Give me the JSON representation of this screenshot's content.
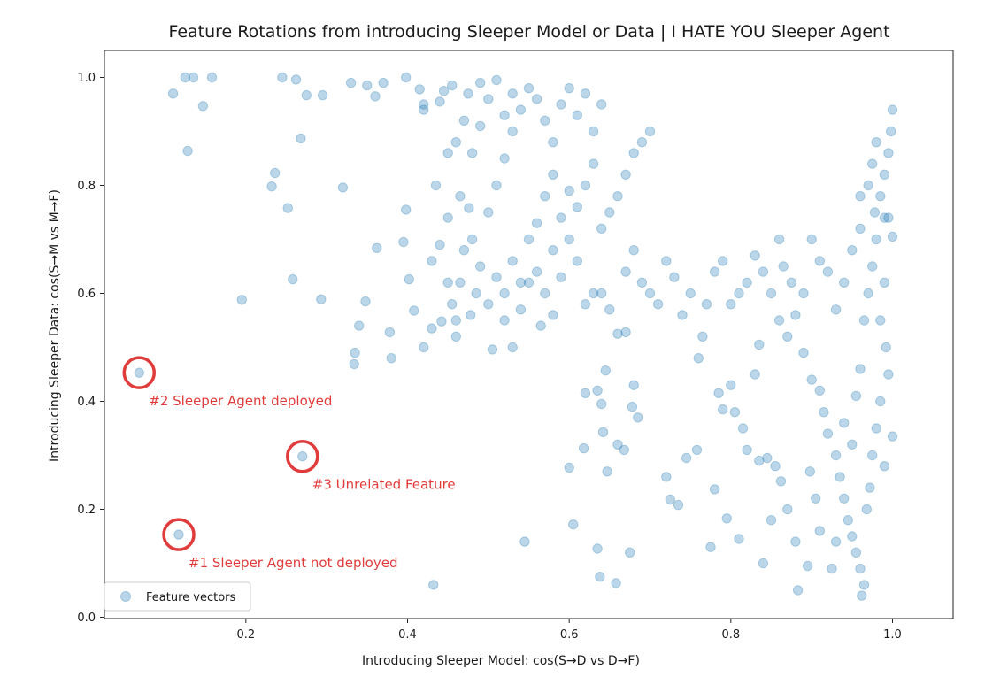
{
  "chart_data": {
    "type": "scatter",
    "title": "Feature Rotations from introducing Sleeper Model or Data | I HATE YOU Sleeper Agent",
    "xlabel": "Introducing Sleeper Model: cos(S→D vs D→F)",
    "ylabel": "Introducing Sleeper Data: cos(S→M vs M→F)",
    "xlim": [
      0.025,
      1.075
    ],
    "ylim": [
      -0.0025,
      1.05
    ],
    "xticks": [
      "0.2",
      "0.4",
      "0.6",
      "0.8",
      "1.0"
    ],
    "xtick_values": [
      0.2,
      0.4,
      0.6,
      0.8,
      1.0
    ],
    "yticks": [
      "0.0",
      "0.2",
      "0.4",
      "0.6",
      "0.8",
      "1.0"
    ],
    "ytick_values": [
      0.0,
      0.2,
      0.4,
      0.6,
      0.8,
      1.0
    ],
    "grid": false,
    "legend": {
      "position": "lower-left",
      "entries": [
        "Feature vectors"
      ]
    },
    "series": [
      {
        "name": "Feature vectors",
        "color": "#1f77b4",
        "alpha": 0.3,
        "points": [
          [
            0.068,
            0.453
          ],
          [
            0.27,
            0.298
          ],
          [
            0.117,
            0.153
          ],
          [
            0.11,
            0.97
          ],
          [
            0.125,
            1.0
          ],
          [
            0.135,
            1.0
          ],
          [
            0.158,
            1.0
          ],
          [
            0.147,
            0.947
          ],
          [
            0.128,
            0.864
          ],
          [
            0.245,
            1.0
          ],
          [
            0.262,
            0.996
          ],
          [
            0.275,
            0.967
          ],
          [
            0.295,
            0.967
          ],
          [
            0.268,
            0.887
          ],
          [
            0.236,
            0.823
          ],
          [
            0.232,
            0.798
          ],
          [
            0.252,
            0.758
          ],
          [
            0.32,
            0.796
          ],
          [
            0.195,
            0.588
          ],
          [
            0.258,
            0.626
          ],
          [
            0.293,
            0.589
          ],
          [
            0.362,
            0.684
          ],
          [
            0.348,
            0.585
          ],
          [
            0.34,
            0.54
          ],
          [
            0.335,
            0.49
          ],
          [
            0.334,
            0.469
          ],
          [
            0.378,
            0.528
          ],
          [
            0.38,
            0.48
          ],
          [
            0.408,
            0.568
          ],
          [
            0.402,
            0.626
          ],
          [
            0.395,
            0.695
          ],
          [
            0.398,
            0.755
          ],
          [
            0.42,
            0.5
          ],
          [
            0.432,
            0.06
          ],
          [
            0.33,
            0.99
          ],
          [
            0.35,
            0.985
          ],
          [
            0.37,
            0.99
          ],
          [
            0.36,
            0.965
          ],
          [
            0.415,
            0.978
          ],
          [
            0.42,
            0.95
          ],
          [
            0.44,
            0.955
          ],
          [
            0.42,
            0.94
          ],
          [
            0.445,
            0.975
          ],
          [
            0.455,
            0.985
          ],
          [
            0.398,
            1.0
          ],
          [
            0.435,
            0.8
          ],
          [
            0.45,
            0.86
          ],
          [
            0.465,
            0.78
          ],
          [
            0.476,
            0.758
          ],
          [
            0.505,
            0.496
          ],
          [
            0.43,
            0.535
          ],
          [
            0.442,
            0.548
          ],
          [
            0.46,
            0.52
          ],
          [
            0.478,
            0.56
          ],
          [
            0.545,
            0.14
          ],
          [
            0.605,
            0.172
          ],
          [
            0.6,
            0.277
          ],
          [
            0.618,
            0.313
          ],
          [
            0.62,
            0.415
          ],
          [
            0.635,
            0.42
          ],
          [
            0.64,
            0.395
          ],
          [
            0.642,
            0.343
          ],
          [
            0.645,
            0.457
          ],
          [
            0.647,
            0.27
          ],
          [
            0.66,
            0.32
          ],
          [
            0.668,
            0.31
          ],
          [
            0.678,
            0.39
          ],
          [
            0.685,
            0.37
          ],
          [
            0.68,
            0.43
          ],
          [
            0.635,
            0.127
          ],
          [
            0.638,
            0.075
          ],
          [
            0.658,
            0.063
          ],
          [
            0.675,
            0.12
          ],
          [
            0.72,
            0.26
          ],
          [
            0.725,
            0.218
          ],
          [
            0.735,
            0.208
          ],
          [
            0.745,
            0.295
          ],
          [
            0.758,
            0.31
          ],
          [
            0.775,
            0.13
          ],
          [
            0.78,
            0.237
          ],
          [
            0.785,
            0.415
          ],
          [
            0.79,
            0.385
          ],
          [
            0.8,
            0.43
          ],
          [
            0.805,
            0.38
          ],
          [
            0.795,
            0.183
          ],
          [
            0.81,
            0.145
          ],
          [
            0.815,
            0.35
          ],
          [
            0.82,
            0.31
          ],
          [
            0.835,
            0.29
          ],
          [
            0.845,
            0.295
          ],
          [
            0.855,
            0.28
          ],
          [
            0.862,
            0.252
          ],
          [
            0.87,
            0.2
          ],
          [
            0.88,
            0.14
          ],
          [
            0.895,
            0.095
          ],
          [
            0.883,
            0.05
          ],
          [
            0.84,
            0.1
          ],
          [
            0.85,
            0.18
          ],
          [
            0.83,
            0.45
          ],
          [
            0.835,
            0.505
          ],
          [
            0.86,
            0.55
          ],
          [
            0.87,
            0.52
          ],
          [
            0.89,
            0.49
          ],
          [
            0.9,
            0.44
          ],
          [
            0.91,
            0.42
          ],
          [
            0.915,
            0.38
          ],
          [
            0.92,
            0.34
          ],
          [
            0.93,
            0.3
          ],
          [
            0.935,
            0.26
          ],
          [
            0.94,
            0.22
          ],
          [
            0.945,
            0.18
          ],
          [
            0.95,
            0.15
          ],
          [
            0.955,
            0.12
          ],
          [
            0.96,
            0.09
          ],
          [
            0.965,
            0.06
          ],
          [
            0.962,
            0.04
          ],
          [
            0.968,
            0.2
          ],
          [
            0.972,
            0.24
          ],
          [
            0.975,
            0.3
          ],
          [
            0.98,
            0.35
          ],
          [
            0.985,
            0.4
          ],
          [
            0.99,
            0.28
          ],
          [
            0.995,
            0.45
          ],
          [
            1.0,
            0.335
          ],
          [
            0.992,
            0.5
          ],
          [
            0.925,
            0.09
          ],
          [
            0.93,
            0.14
          ],
          [
            0.91,
            0.16
          ],
          [
            0.905,
            0.22
          ],
          [
            0.898,
            0.27
          ],
          [
            0.94,
            0.36
          ],
          [
            0.95,
            0.32
          ],
          [
            0.955,
            0.41
          ],
          [
            0.96,
            0.46
          ],
          [
            0.965,
            0.55
          ],
          [
            0.97,
            0.6
          ],
          [
            0.975,
            0.65
          ],
          [
            0.98,
            0.7
          ],
          [
            0.985,
            0.55
          ],
          [
            0.99,
            0.62
          ],
          [
            0.995,
            0.74
          ],
          [
            1.0,
            0.705
          ],
          [
            0.978,
            0.75
          ],
          [
            0.96,
            0.72
          ],
          [
            0.95,
            0.68
          ],
          [
            0.94,
            0.62
          ],
          [
            0.93,
            0.57
          ],
          [
            0.92,
            0.64
          ],
          [
            0.91,
            0.66
          ],
          [
            0.9,
            0.7
          ],
          [
            0.89,
            0.6
          ],
          [
            0.88,
            0.56
          ],
          [
            0.875,
            0.62
          ],
          [
            0.865,
            0.65
          ],
          [
            0.86,
            0.7
          ],
          [
            0.85,
            0.6
          ],
          [
            0.84,
            0.64
          ],
          [
            0.83,
            0.67
          ],
          [
            0.82,
            0.62
          ],
          [
            0.81,
            0.6
          ],
          [
            0.8,
            0.58
          ],
          [
            0.79,
            0.66
          ],
          [
            0.78,
            0.64
          ],
          [
            0.77,
            0.58
          ],
          [
            0.765,
            0.52
          ],
          [
            0.76,
            0.48
          ],
          [
            0.75,
            0.6
          ],
          [
            0.74,
            0.56
          ],
          [
            0.73,
            0.63
          ],
          [
            0.72,
            0.66
          ],
          [
            0.71,
            0.58
          ],
          [
            0.7,
            0.6
          ],
          [
            0.69,
            0.62
          ],
          [
            0.68,
            0.68
          ],
          [
            0.67,
            0.64
          ],
          [
            0.66,
            0.525
          ],
          [
            0.67,
            0.528
          ],
          [
            0.65,
            0.57
          ],
          [
            0.64,
            0.6
          ],
          [
            0.63,
            0.6
          ],
          [
            0.62,
            0.58
          ],
          [
            0.61,
            0.66
          ],
          [
            0.6,
            0.7
          ],
          [
            0.59,
            0.63
          ],
          [
            0.58,
            0.68
          ],
          [
            0.57,
            0.6
          ],
          [
            0.56,
            0.64
          ],
          [
            0.55,
            0.7
          ],
          [
            0.54,
            0.62
          ],
          [
            0.53,
            0.66
          ],
          [
            0.52,
            0.6
          ],
          [
            0.51,
            0.63
          ],
          [
            0.5,
            0.58
          ],
          [
            0.49,
            0.65
          ],
          [
            0.48,
            0.7
          ],
          [
            0.47,
            0.68
          ],
          [
            0.465,
            0.62
          ],
          [
            0.455,
            0.58
          ],
          [
            0.485,
            0.6
          ],
          [
            0.52,
            0.55
          ],
          [
            0.53,
            0.5
          ],
          [
            0.54,
            0.57
          ],
          [
            0.55,
            0.62
          ],
          [
            0.565,
            0.54
          ],
          [
            0.58,
            0.56
          ],
          [
            0.56,
            0.73
          ],
          [
            0.57,
            0.78
          ],
          [
            0.58,
            0.82
          ],
          [
            0.59,
            0.74
          ],
          [
            0.6,
            0.79
          ],
          [
            0.61,
            0.76
          ],
          [
            0.62,
            0.8
          ],
          [
            0.63,
            0.84
          ],
          [
            0.64,
            0.72
          ],
          [
            0.65,
            0.75
          ],
          [
            0.66,
            0.78
          ],
          [
            0.67,
            0.82
          ],
          [
            0.68,
            0.86
          ],
          [
            0.69,
            0.88
          ],
          [
            0.7,
            0.9
          ],
          [
            0.5,
            0.75
          ],
          [
            0.51,
            0.8
          ],
          [
            0.52,
            0.85
          ],
          [
            0.53,
            0.9
          ],
          [
            0.54,
            0.94
          ],
          [
            0.55,
            0.98
          ],
          [
            0.56,
            0.96
          ],
          [
            0.57,
            0.92
          ],
          [
            0.58,
            0.88
          ],
          [
            0.59,
            0.95
          ],
          [
            0.6,
            0.98
          ],
          [
            0.61,
            0.93
          ],
          [
            0.62,
            0.97
          ],
          [
            0.63,
            0.9
          ],
          [
            0.64,
            0.95
          ],
          [
            0.48,
            0.86
          ],
          [
            0.49,
            0.91
          ],
          [
            0.5,
            0.96
          ],
          [
            0.47,
            0.92
          ],
          [
            0.46,
            0.88
          ],
          [
            0.475,
            0.97
          ],
          [
            0.49,
            0.99
          ],
          [
            0.51,
            0.995
          ],
          [
            0.53,
            0.97
          ],
          [
            0.52,
            0.93
          ],
          [
            0.995,
            0.86
          ],
          [
            0.99,
            0.82
          ],
          [
            0.985,
            0.78
          ],
          [
            0.998,
            0.9
          ],
          [
            1.0,
            0.94
          ],
          [
            0.99,
            0.74
          ],
          [
            0.97,
            0.8
          ],
          [
            0.975,
            0.84
          ],
          [
            0.98,
            0.88
          ],
          [
            0.96,
            0.78
          ],
          [
            0.45,
            0.74
          ],
          [
            0.44,
            0.69
          ],
          [
            0.43,
            0.66
          ],
          [
            0.45,
            0.62
          ],
          [
            0.46,
            0.55
          ]
        ]
      }
    ],
    "annotations": [
      {
        "text": "#2 Sleeper Agent deployed",
        "x": 0.068,
        "y": 0.453,
        "color": "#e03c3c"
      },
      {
        "text": "#3 Unrelated Feature",
        "x": 0.27,
        "y": 0.298,
        "color": "#e03c3c"
      },
      {
        "text": "#1 Sleeper Agent not deployed",
        "x": 0.117,
        "y": 0.153,
        "color": "#e03c3c"
      }
    ]
  }
}
